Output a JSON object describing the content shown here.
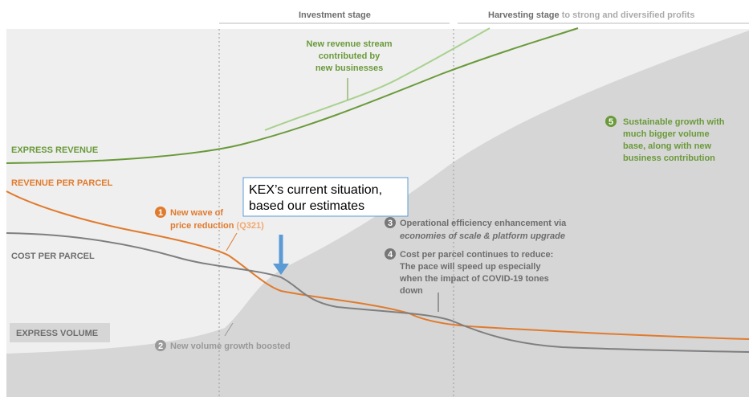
{
  "header": {
    "investment": "Investment stage",
    "harvesting": "Harvesting stage",
    "harvesting_note": "to strong and diversified profits"
  },
  "labels": {
    "express_revenue": "EXPRESS REVENUE",
    "revenue_per_parcel": "REVENUE PER PARCEL",
    "cost_per_parcel": "COST PER PARCEL",
    "express_volume": "EXPRESS VOLUME"
  },
  "new_stream": [
    "New revenue stream",
    "contributed by",
    "new businesses"
  ],
  "callout": [
    "KEX’s current situation,",
    "based our estimates"
  ],
  "notes": [
    {
      "num": "1",
      "lines": [
        "New wave of",
        "price reduction"
      ],
      "extra": "(Q321)"
    },
    {
      "num": "2",
      "lines": [
        "New volume growth boosted"
      ]
    },
    {
      "num": "3",
      "lines": [
        "Operational efficiency enhancement via",
        "economies of scale & platform upgrade"
      ]
    },
    {
      "num": "4",
      "lines": [
        "Cost per parcel continues to reduce:",
        "The pace will speed up especially",
        "when the impact of COVID-19 tones",
        "down"
      ]
    },
    {
      "num": "5",
      "lines": [
        "Sustainable growth with",
        "much bigger volume",
        "base, along with new",
        "business contribution"
      ]
    }
  ]
}
